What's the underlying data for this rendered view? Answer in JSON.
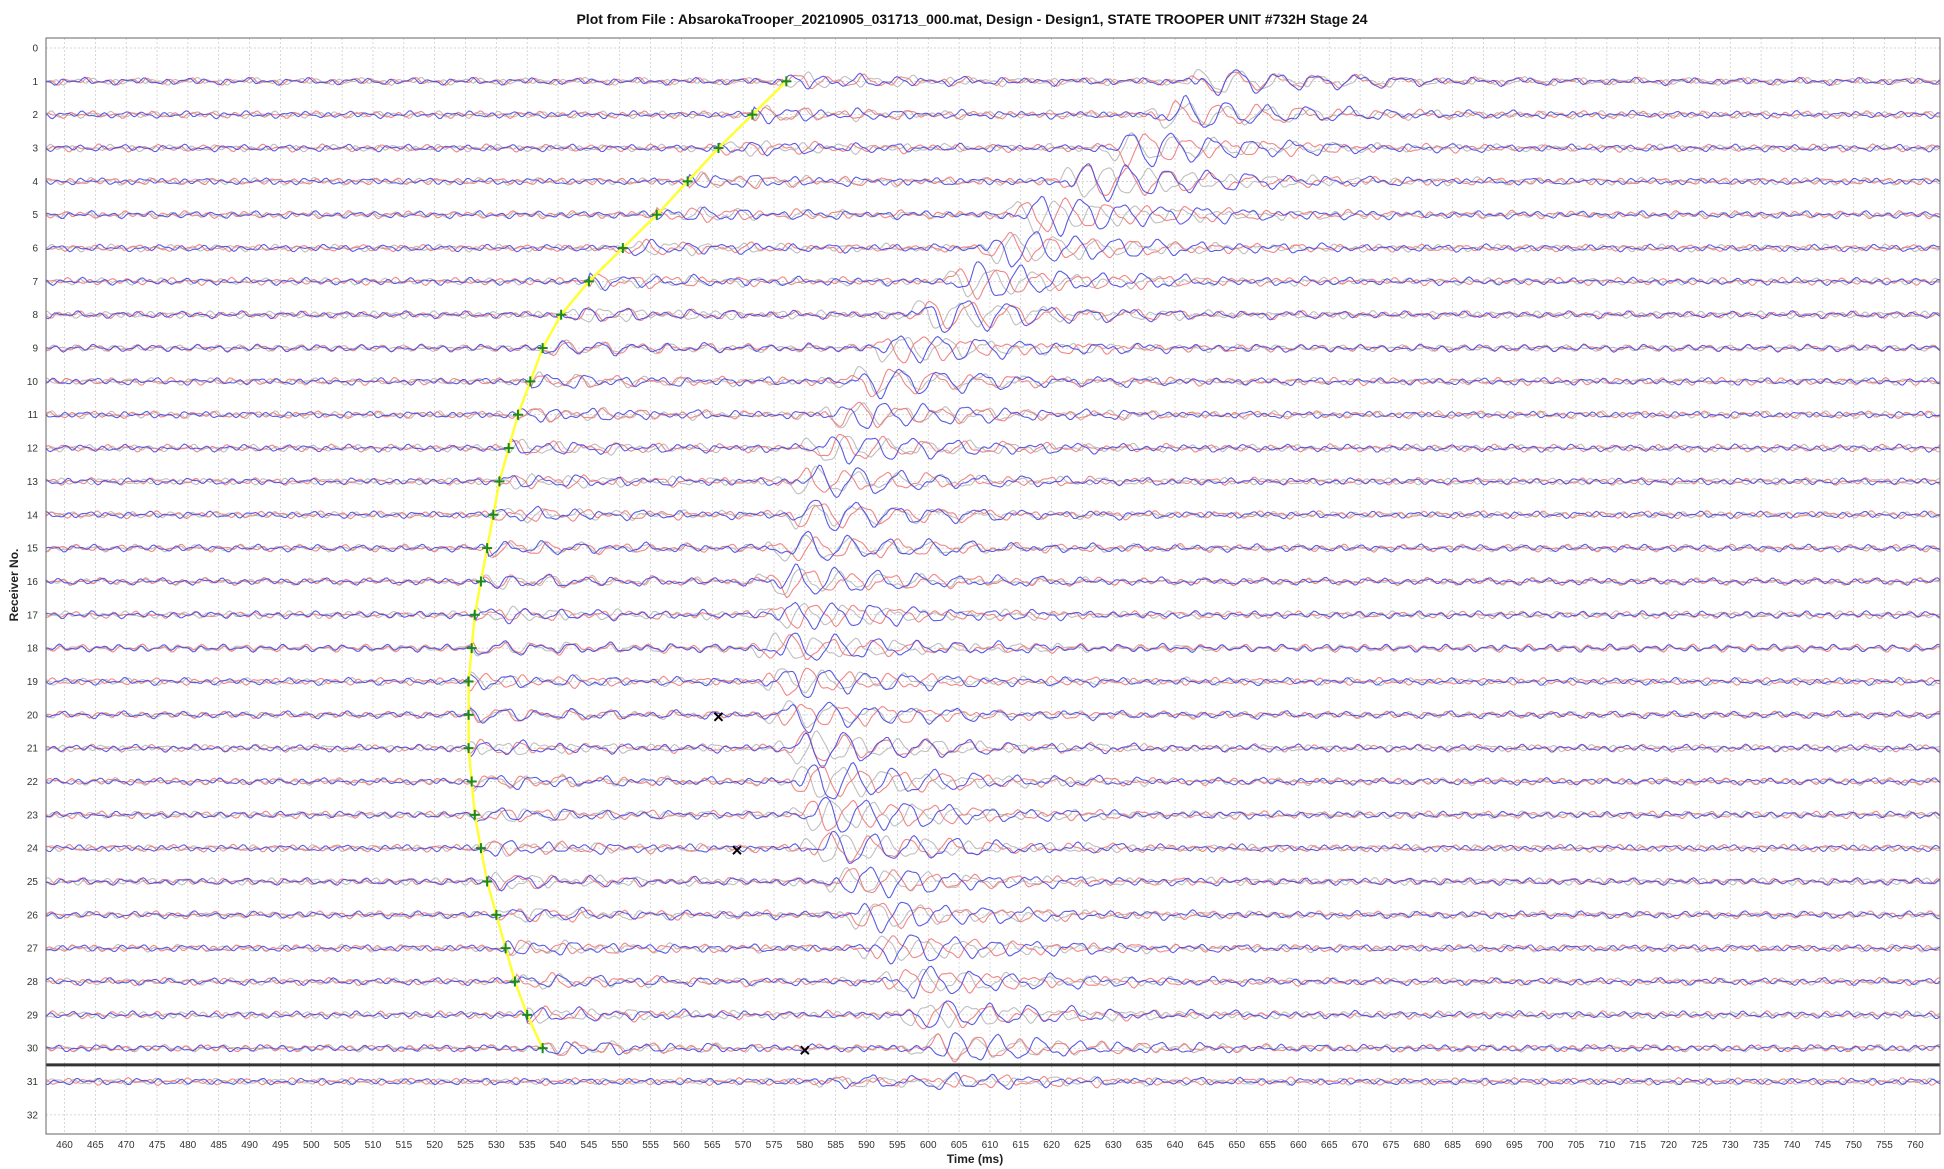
{
  "chart_data": {
    "type": "line",
    "title": "Plot from File : AbsarokaTrooper_20210905_031713_000.mat, Design - Design1, STATE TROOPER UNIT #732H Stage 24",
    "xlabel": "Time (ms)",
    "ylabel": "Receiver No.",
    "xlim": [
      457,
      764
    ],
    "ylim": [
      0,
      32
    ],
    "y_inverted": true,
    "grid": true,
    "x_ticks": [
      460,
      465,
      470,
      475,
      480,
      485,
      490,
      495,
      500,
      505,
      510,
      515,
      520,
      525,
      530,
      535,
      540,
      545,
      550,
      555,
      560,
      565,
      570,
      575,
      580,
      585,
      590,
      595,
      600,
      605,
      610,
      615,
      620,
      625,
      630,
      635,
      640,
      645,
      650,
      655,
      660,
      665,
      670,
      675,
      680,
      685,
      690,
      695,
      700,
      705,
      710,
      715,
      720,
      725,
      730,
      735,
      740,
      745,
      750,
      755,
      760
    ],
    "y_ticks": [
      0,
      1,
      2,
      3,
      4,
      5,
      6,
      7,
      8,
      9,
      10,
      11,
      12,
      13,
      14,
      15,
      16,
      17,
      18,
      19,
      20,
      21,
      22,
      23,
      24,
      25,
      26,
      27,
      28,
      29,
      30,
      31,
      32
    ],
    "separator_line_receiver": 30.5,
    "colors": {
      "trace_red": "#f07a7a",
      "trace_blue": "#4a4ae0",
      "trace_gray": "#b8b8b8",
      "pick_curve": "#ffff33",
      "pick_marker": "#1a8a1a",
      "x_marker": "#000000",
      "grid": "#c8c8c8",
      "separator": "#333333"
    },
    "picks": {
      "name": "",
      "receivers": [
        1,
        2,
        3,
        4,
        5,
        6,
        7,
        8,
        9,
        10,
        11,
        12,
        13,
        14,
        15,
        16,
        17,
        18,
        19,
        20,
        21,
        22,
        23,
        24,
        25,
        26,
        27,
        28,
        29,
        30
      ],
      "time_ms": [
        577,
        571.5,
        566,
        561,
        556,
        550.5,
        545,
        540.5,
        537.5,
        535.5,
        533.5,
        532,
        530.5,
        529.5,
        528.5,
        527.5,
        526.5,
        526,
        525.5,
        525.5,
        525.5,
        526,
        526.5,
        527.5,
        528.5,
        530,
        531.5,
        533,
        535,
        537.5
      ]
    },
    "x_markers": [
      {
        "receiver": 20,
        "time_ms": 566
      },
      {
        "receiver": 24,
        "time_ms": 569
      },
      {
        "receiver": 30,
        "time_ms": 580
      }
    ],
    "events": [
      {
        "name": "",
        "receivers": [
          1,
          2,
          3,
          4,
          5,
          6,
          7,
          8,
          9,
          10,
          11,
          12,
          13,
          14,
          15,
          16,
          17,
          18,
          19,
          20,
          21,
          22,
          23,
          24,
          25,
          26,
          27,
          28,
          29,
          30
        ],
        "onset_ms": [
          646,
          640,
          632,
          625,
          617,
          612,
          606,
          600,
          594,
          590,
          587,
          584,
          581,
          580,
          578,
          577,
          577,
          576,
          577,
          578,
          580,
          581,
          582,
          584,
          587,
          590,
          593,
          596,
          599,
          602
        ],
        "amplitude": [
          0.5,
          0.6,
          0.7,
          0.8,
          0.8,
          0.7,
          0.7,
          0.7,
          0.6,
          0.6,
          0.6,
          0.6,
          0.6,
          0.6,
          0.6,
          0.6,
          0.6,
          0.6,
          0.6,
          0.6,
          0.7,
          0.8,
          0.8,
          0.7,
          0.6,
          0.6,
          0.6,
          0.6,
          0.6,
          0.6
        ]
      }
    ]
  }
}
